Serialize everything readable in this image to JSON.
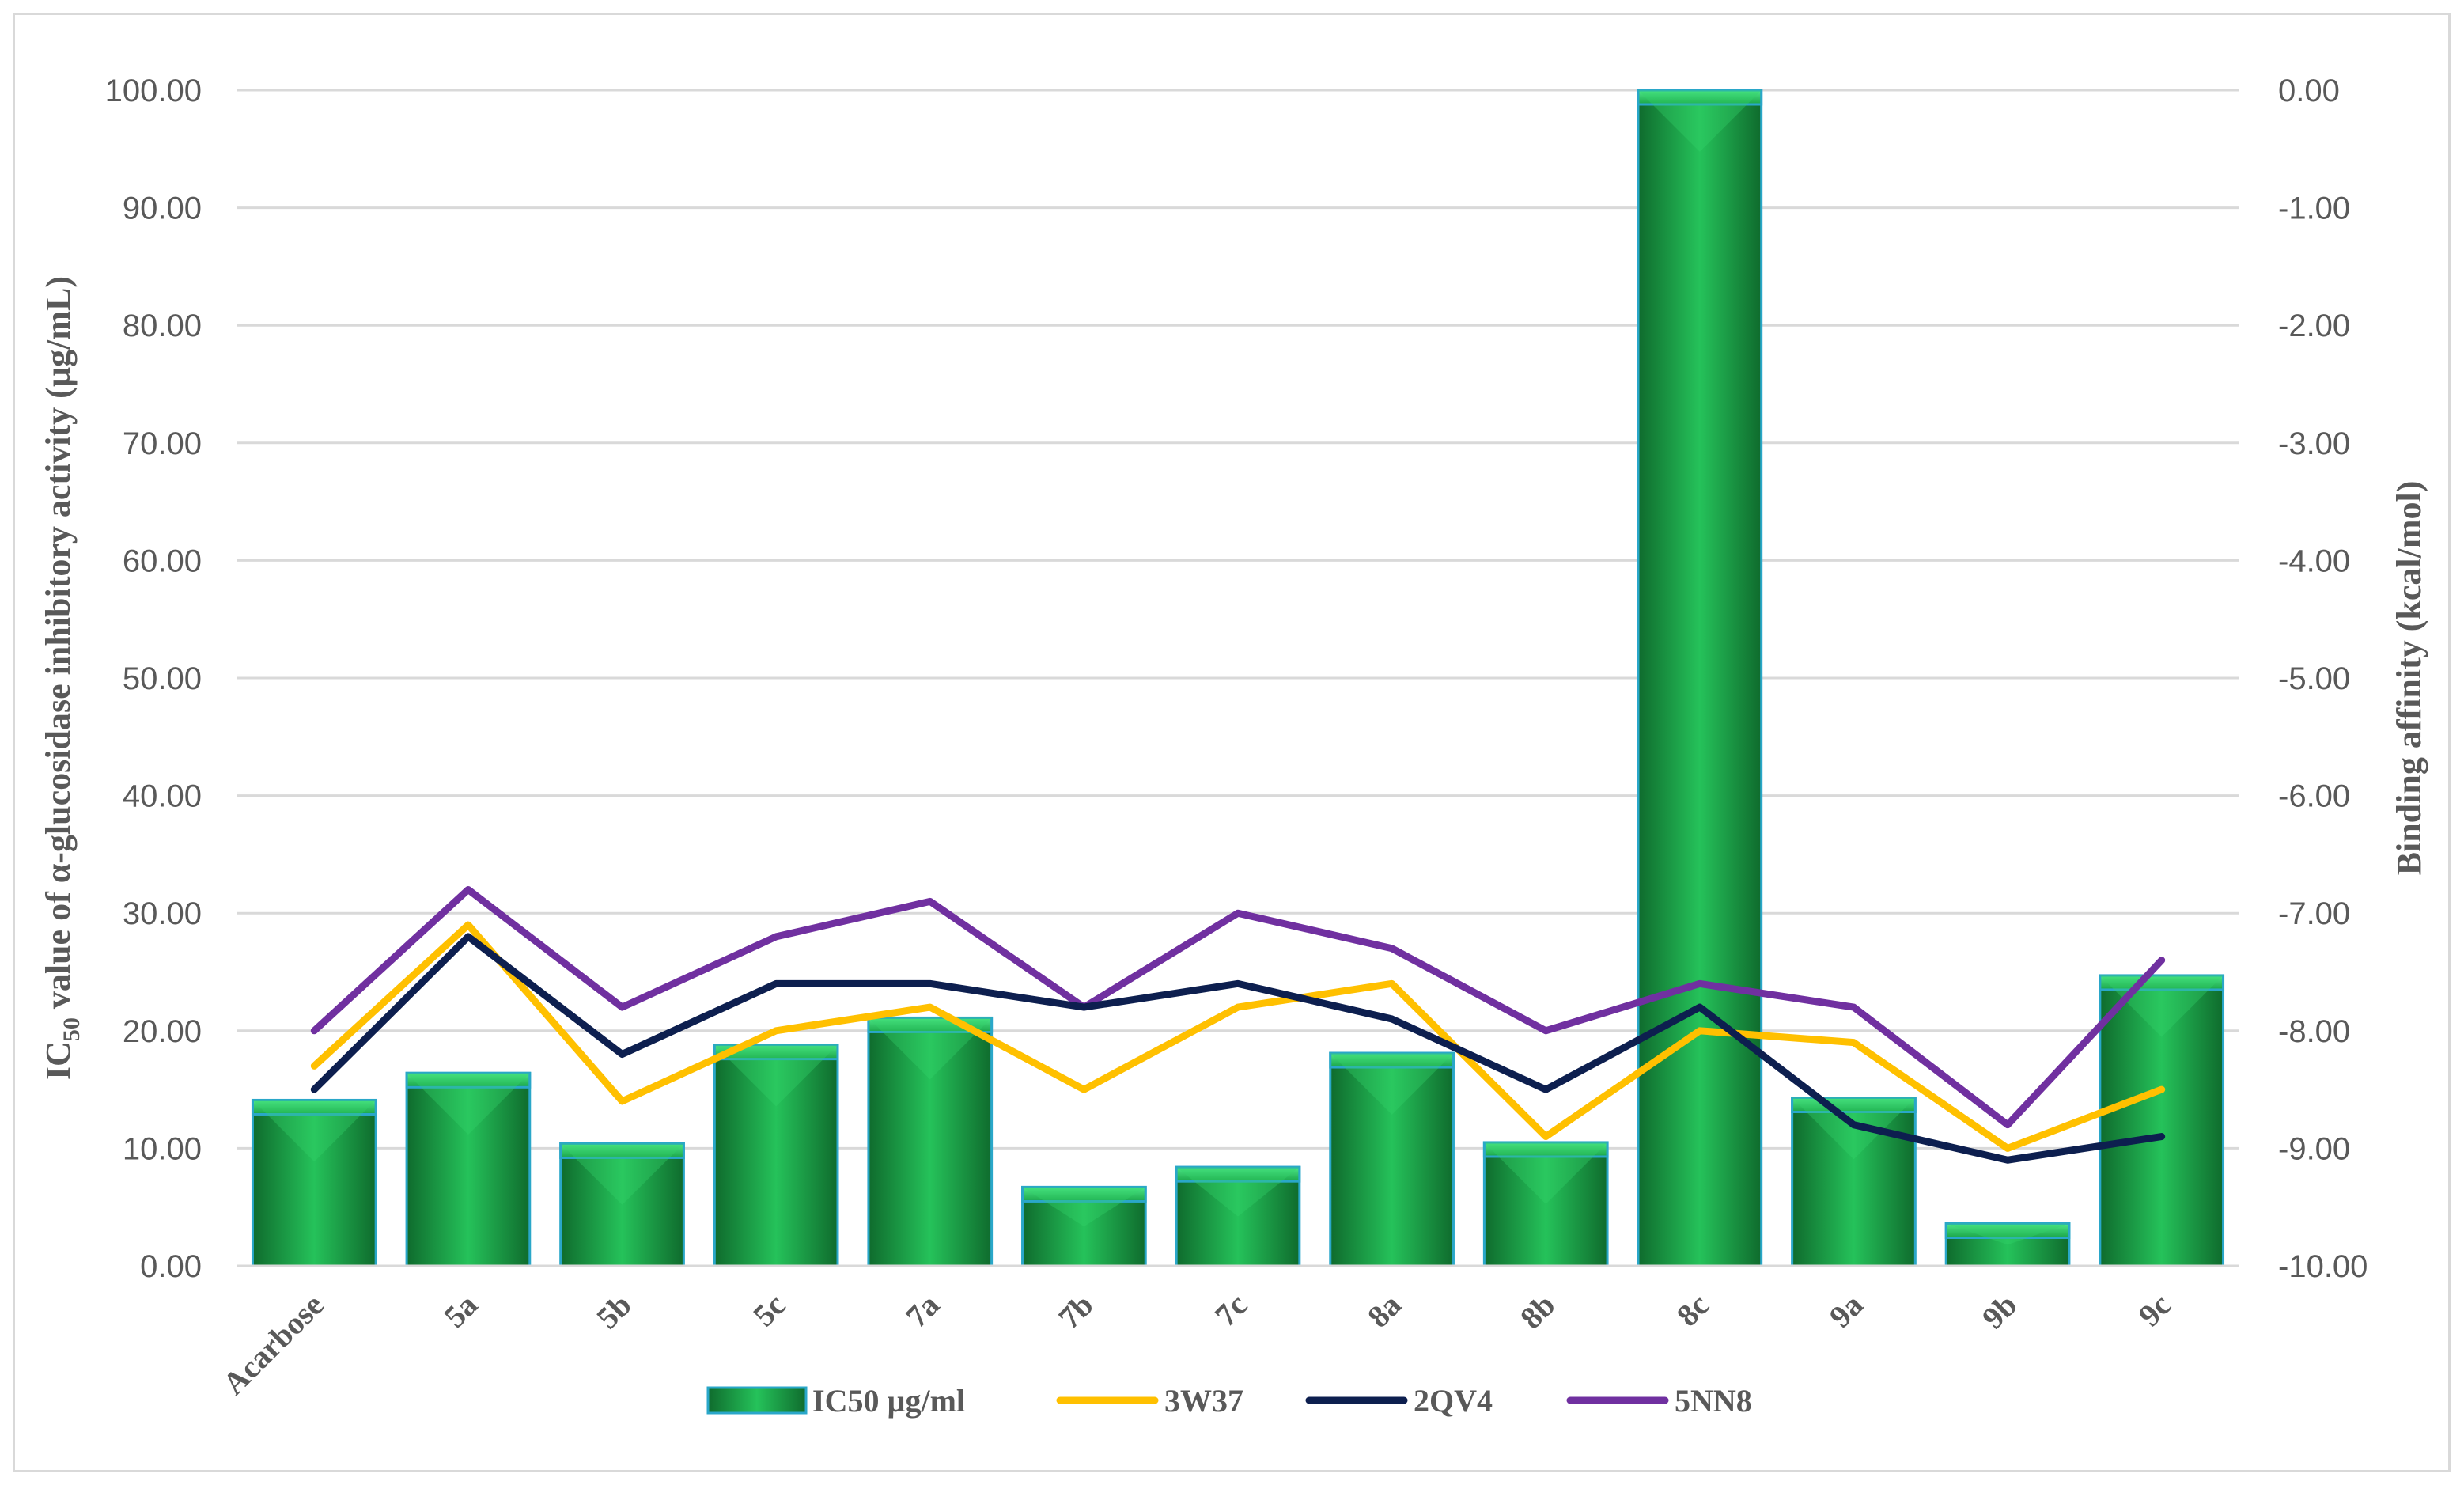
{
  "chart_data": {
    "type": "bar",
    "categories": [
      "Acarbose",
      "5a",
      "5b",
      "5c",
      "7a",
      "7b",
      "7c",
      "8a",
      "8b",
      "8c",
      "9a",
      "9b",
      "9c"
    ],
    "series": [
      {
        "name": "IC50 µg/ml",
        "type": "bar",
        "axis": "left",
        "color": "#1fa84a",
        "values": [
          14.1,
          16.4,
          10.4,
          18.8,
          21.1,
          6.7,
          8.4,
          18.1,
          10.5,
          100.0,
          14.3,
          3.6,
          24.7
        ]
      },
      {
        "name": "3W37",
        "type": "line",
        "axis": "right",
        "color": "#ffc000",
        "values": [
          -8.3,
          -7.1,
          -8.6,
          -8.0,
          -7.8,
          -8.5,
          -7.8,
          -7.6,
          -8.9,
          -8.0,
          -8.1,
          -9.0,
          -8.5
        ]
      },
      {
        "name": "2QV4",
        "type": "line",
        "axis": "right",
        "color": "#0d1f4f",
        "values": [
          -8.5,
          -7.2,
          -8.2,
          -7.6,
          -7.6,
          -7.8,
          -7.6,
          -7.9,
          -8.5,
          -7.8,
          -8.8,
          -9.1,
          -8.9
        ]
      },
      {
        "name": "5NN8",
        "type": "line",
        "axis": "right",
        "color": "#7030a0",
        "values": [
          -8.0,
          -6.8,
          -7.8,
          -7.2,
          -6.9,
          -7.8,
          -7.0,
          -7.3,
          -8.0,
          -7.6,
          -7.8,
          -8.8,
          -7.4
        ]
      }
    ],
    "ylim": [
      0,
      100
    ],
    "y2lim": [
      -10,
      0
    ],
    "yticks": [
      "0.00",
      "10.00",
      "20.00",
      "30.00",
      "40.00",
      "50.00",
      "60.00",
      "70.00",
      "80.00",
      "90.00",
      "100.00"
    ],
    "y2ticks": [
      "-10.00",
      "-9.00",
      "-8.00",
      "-7.00",
      "-6.00",
      "-5.00",
      "-4.00",
      "-3.00",
      "-2.00",
      "-1.00",
      "0.00"
    ],
    "ylabel_main": "IC",
    "ylabel_sub": "50",
    "ylabel_rest": " value of α-glucosidase inhibitory  activity (µg/mL)",
    "y2label": "Binding affinity (kcal/mol)",
    "xlabel": "",
    "title": "",
    "grid": true,
    "legend_position": "bottom"
  }
}
